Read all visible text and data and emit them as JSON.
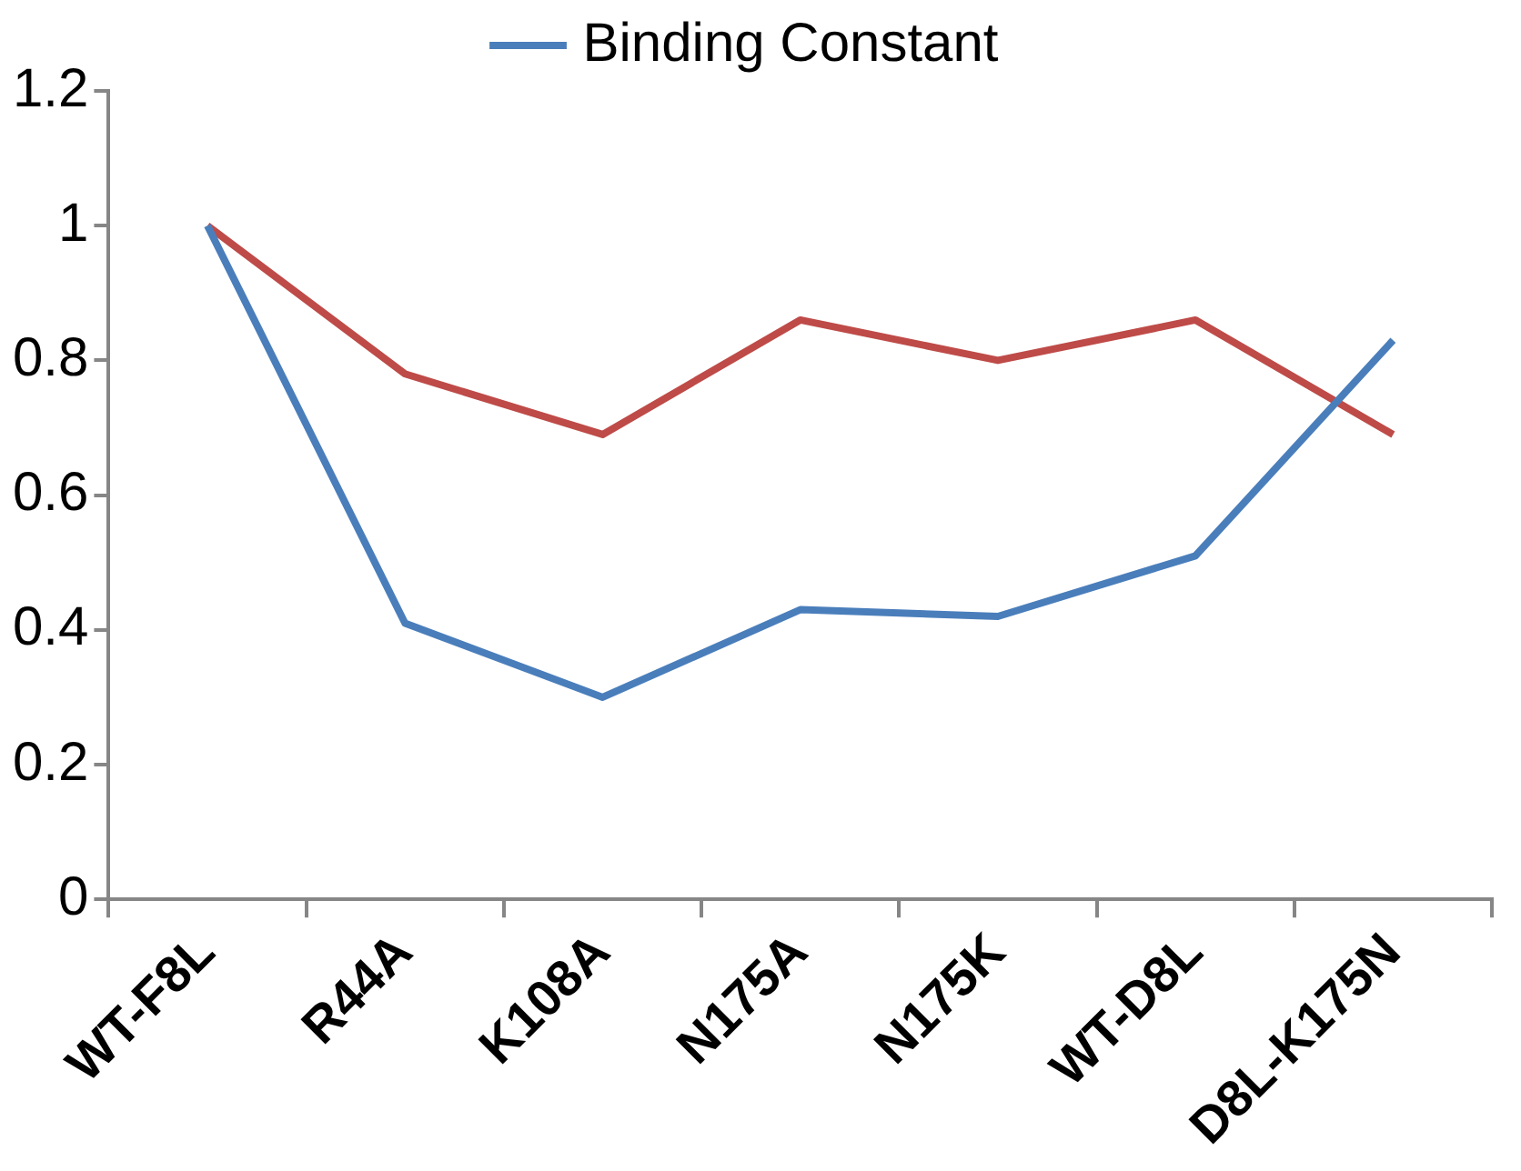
{
  "chart_data": {
    "type": "line",
    "categories": [
      "WT-F8L",
      "R44A",
      "K108A",
      "N175A",
      "N175K",
      "WT-D8L",
      "D8L-K175N"
    ],
    "series": [
      {
        "name": "Binding Constant",
        "color": "#4a7ebb",
        "values": [
          1,
          0.41,
          0.3,
          0.43,
          0.42,
          0.51,
          0.83
        ]
      },
      {
        "color": "#be4b48",
        "values": [
          1,
          0.78,
          0.69,
          0.86,
          0.8,
          0.86,
          0.69
        ]
      }
    ],
    "ylim": [
      0,
      1.2
    ],
    "yticks": [
      0,
      0.2,
      0.4,
      0.6,
      0.8,
      1,
      1.2
    ],
    "grid": false,
    "legend": "top",
    "marker": "none",
    "line_style": "solid"
  }
}
